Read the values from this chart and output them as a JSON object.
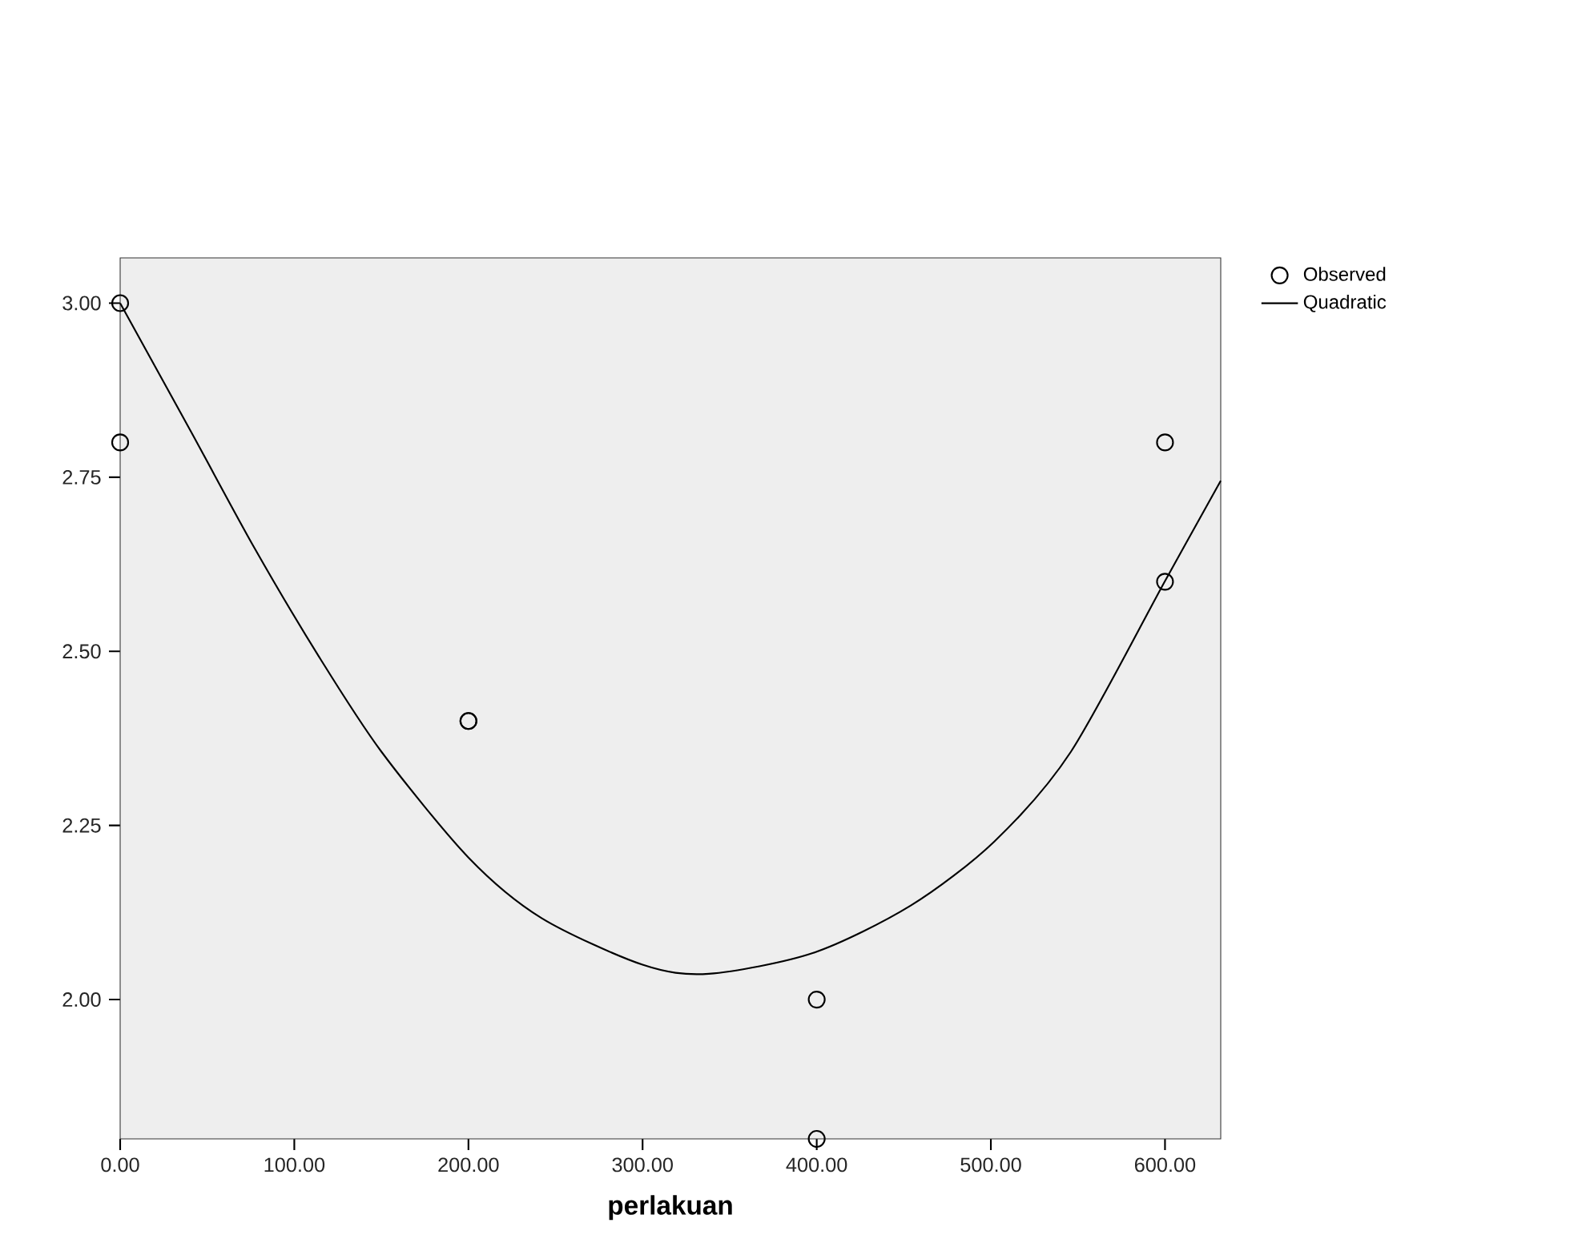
{
  "chart_data": {
    "type": "scatter",
    "xlabel": "perlakuan",
    "xlim": [
      0,
      632
    ],
    "ylim": [
      1.8,
      3.065
    ],
    "xticks": [
      {
        "value": 0,
        "label": "0.00"
      },
      {
        "value": 100,
        "label": "100.00"
      },
      {
        "value": 200,
        "label": "200.00"
      },
      {
        "value": 300,
        "label": "300.00"
      },
      {
        "value": 400,
        "label": "400.00"
      },
      {
        "value": 500,
        "label": "500.00"
      },
      {
        "value": 600,
        "label": "600.00"
      }
    ],
    "yticks": [
      {
        "value": 2,
        "label": "2.00"
      },
      {
        "value": 2.25,
        "label": "2.25"
      },
      {
        "value": 2.5,
        "label": "2.50"
      },
      {
        "value": 2.75,
        "label": "2.75"
      },
      {
        "value": 3,
        "label": "3.00"
      }
    ],
    "grid": false,
    "legend": "top right",
    "series": [
      {
        "name": "Observed",
        "marker": "circle",
        "color": "#000000",
        "x": [
          0,
          0,
          200,
          200,
          400,
          400,
          600,
          600
        ],
        "values": [
          3.0,
          2.8,
          2.4,
          2.4,
          2.0,
          1.8,
          2.8,
          2.6
        ]
      },
      {
        "name": "Quadratic",
        "type": "line",
        "marker": "none",
        "line_style": "solid",
        "color": "#000000",
        "x": [
          0,
          41,
          77,
          114,
          150,
          200,
          242,
          300,
          338,
          398,
          454,
          502,
          546,
          600,
          632
        ],
        "values": [
          3.0,
          2.814,
          2.649,
          2.493,
          2.356,
          2.204,
          2.117,
          2.05,
          2.037,
          2.067,
          2.135,
          2.227,
          2.356,
          2.601,
          2.745
        ]
      }
    ]
  }
}
